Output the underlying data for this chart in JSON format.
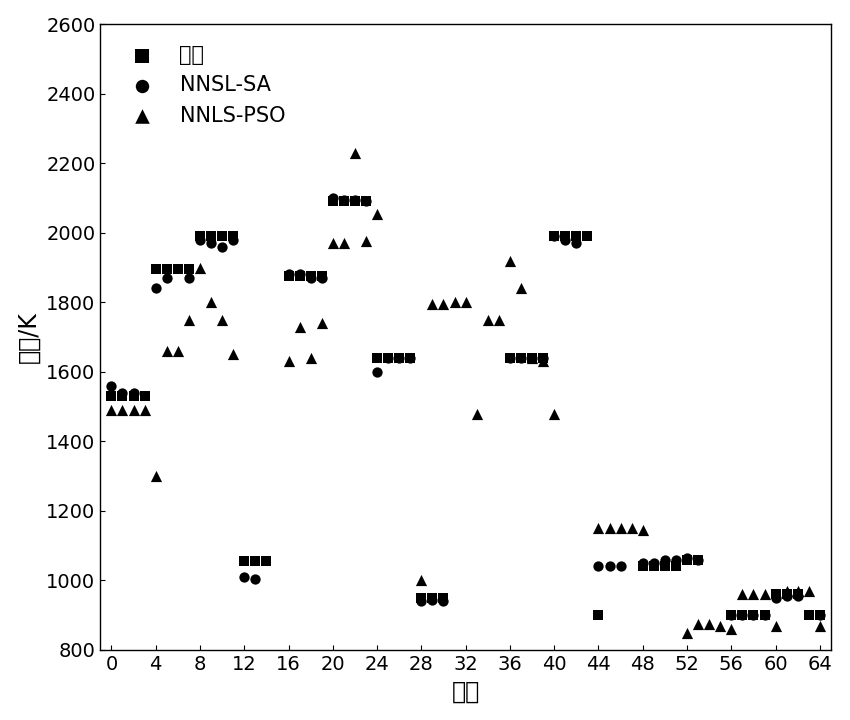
{
  "title": "",
  "xlabel": "网格",
  "ylabel": "温度/K",
  "xlim": [
    -1,
    65
  ],
  "ylim": [
    800,
    2600
  ],
  "xticks": [
    0,
    4,
    8,
    12,
    16,
    20,
    24,
    28,
    32,
    36,
    40,
    44,
    48,
    52,
    56,
    60,
    64
  ],
  "yticks": [
    800,
    1000,
    1200,
    1400,
    1600,
    1800,
    2000,
    2200,
    2400,
    2600
  ],
  "legend_labels": [
    "真値",
    "NNSL-SA",
    "NNLS-PSO"
  ],
  "series_zhenzhi": {
    "x": [
      0,
      1,
      2,
      3,
      4,
      5,
      6,
      7,
      8,
      9,
      10,
      11,
      12,
      13,
      14,
      16,
      17,
      18,
      19,
      20,
      21,
      22,
      23,
      24,
      25,
      26,
      27,
      28,
      29,
      30,
      36,
      37,
      38,
      39,
      40,
      41,
      42,
      43,
      44,
      48,
      49,
      50,
      51,
      52,
      53,
      56,
      57,
      58,
      59,
      60,
      61,
      62,
      63,
      64
    ],
    "y": [
      1530,
      1530,
      1530,
      1530,
      1895,
      1895,
      1895,
      1895,
      1990,
      1990,
      1990,
      1990,
      1055,
      1055,
      1055,
      1875,
      1875,
      1875,
      1875,
      2090,
      2090,
      2090,
      2090,
      1640,
      1640,
      1640,
      1640,
      950,
      950,
      950,
      1640,
      1640,
      1640,
      1640,
      1990,
      1990,
      1990,
      1990,
      900,
      1040,
      1040,
      1040,
      1040,
      1060,
      1060,
      900,
      900,
      900,
      900,
      960,
      960,
      960,
      900,
      900
    ]
  },
  "series_nnsl_sa": {
    "x": [
      0,
      1,
      2,
      4,
      5,
      7,
      8,
      9,
      10,
      11,
      12,
      13,
      16,
      17,
      18,
      19,
      20,
      21,
      22,
      23,
      24,
      25,
      26,
      27,
      28,
      29,
      30,
      36,
      37,
      38,
      39,
      40,
      41,
      42,
      44,
      45,
      46,
      48,
      49,
      50,
      51,
      52,
      53,
      56,
      57,
      58,
      59,
      60,
      61,
      62,
      64
    ],
    "y": [
      1560,
      1540,
      1540,
      1840,
      1870,
      1870,
      1980,
      1970,
      1960,
      1980,
      1010,
      1005,
      1880,
      1880,
      1870,
      1870,
      2100,
      2095,
      2095,
      2090,
      1600,
      1640,
      1640,
      1640,
      940,
      945,
      940,
      1640,
      1640,
      1640,
      1640,
      1990,
      1980,
      1970,
      1040,
      1040,
      1040,
      1050,
      1050,
      1060,
      1060,
      1065,
      1060,
      900,
      900,
      900,
      900,
      950,
      955,
      955,
      900
    ]
  },
  "series_nnls_pso": {
    "x": [
      0,
      1,
      2,
      3,
      4,
      5,
      6,
      7,
      8,
      9,
      10,
      11,
      16,
      17,
      18,
      19,
      20,
      21,
      22,
      23,
      24,
      28,
      29,
      30,
      31,
      32,
      33,
      34,
      35,
      36,
      37,
      38,
      39,
      40,
      44,
      45,
      46,
      47,
      48,
      52,
      53,
      54,
      55,
      56,
      57,
      58,
      59,
      60,
      61,
      62,
      63,
      64
    ],
    "y": [
      1490,
      1490,
      1490,
      1490,
      1300,
      1660,
      1660,
      1750,
      1900,
      1800,
      1750,
      1650,
      1630,
      1730,
      1640,
      1740,
      1970,
      1970,
      2230,
      1975,
      2055,
      1000,
      1795,
      1795,
      1800,
      1800,
      1480,
      1750,
      1750,
      1920,
      1840,
      1640,
      1630,
      1480,
      1150,
      1150,
      1150,
      1150,
      1145,
      850,
      875,
      875,
      870,
      860,
      960,
      960,
      960,
      870,
      970,
      970,
      970,
      870
    ]
  },
  "marker_size_sq": 55,
  "marker_size_ci": 55,
  "marker_size_tr": 65,
  "color": "black",
  "background_color": "white",
  "legend_fontsize": 15,
  "axis_label_fontsize": 17,
  "tick_fontsize": 14
}
